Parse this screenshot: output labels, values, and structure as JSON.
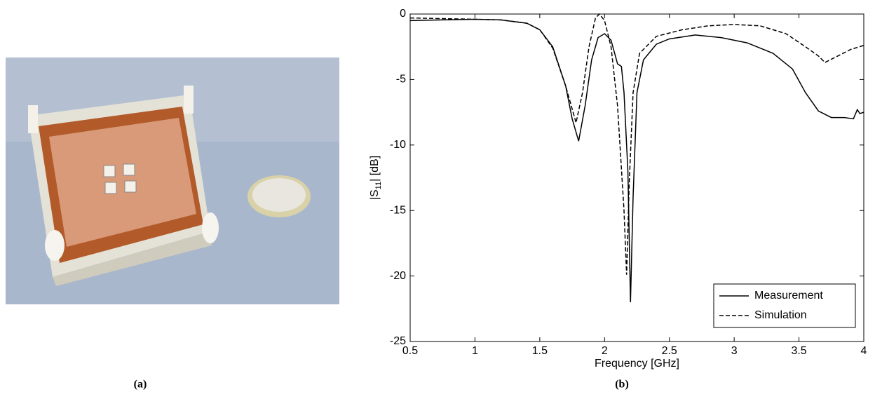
{
  "panel_a": {
    "caption": "(a)"
  },
  "chart_data": {
    "type": "line",
    "caption": "(b)",
    "xlabel": "Frequency [GHz]",
    "ylabel": [
      "|S",
      "11",
      "| [dB]"
    ],
    "xlim": [
      0.5,
      4
    ],
    "xticks": [
      0.5,
      1,
      1.5,
      2,
      2.5,
      3,
      3.5,
      4
    ],
    "ylim": [
      -25,
      0
    ],
    "yticks": [
      0,
      -5,
      -10,
      -15,
      -20,
      -25
    ],
    "grid": false,
    "legend": "lower right",
    "series": [
      {
        "name": "Measurement",
        "color": "#000000",
        "style": "solid",
        "x": [
          0.5,
          0.75,
          1.0,
          1.2,
          1.4,
          1.5,
          1.6,
          1.7,
          1.75,
          1.8,
          1.85,
          1.9,
          1.95,
          2.0,
          2.05,
          2.1,
          2.13,
          2.15,
          2.18,
          2.2,
          2.22,
          2.25,
          2.3,
          2.4,
          2.5,
          2.7,
          2.9,
          3.1,
          3.3,
          3.45,
          3.55,
          3.65,
          3.75,
          3.85,
          3.92,
          3.95,
          3.97,
          4.0
        ],
        "values": [
          -0.5,
          -0.45,
          -0.4,
          -0.45,
          -0.7,
          -1.2,
          -2.5,
          -5.5,
          -8,
          -9.7,
          -7,
          -3.5,
          -1.8,
          -1.5,
          -2.0,
          -3.8,
          -4.0,
          -6,
          -12,
          -22,
          -14,
          -6,
          -3.5,
          -2.3,
          -1.9,
          -1.6,
          -1.8,
          -2.2,
          -3.0,
          -4.2,
          -6.0,
          -7.4,
          -7.9,
          -7.9,
          -8.0,
          -7.3,
          -7.6,
          -7.5
        ]
      },
      {
        "name": "Simulation",
        "color": "#000000",
        "style": "dashed",
        "x": [
          0.5,
          0.75,
          1.0,
          1.2,
          1.4,
          1.5,
          1.6,
          1.7,
          1.78,
          1.83,
          1.88,
          1.93,
          1.96,
          2.0,
          2.05,
          2.1,
          2.15,
          2.17,
          2.19,
          2.22,
          2.27,
          2.4,
          2.6,
          2.8,
          3.0,
          3.2,
          3.4,
          3.55,
          3.65,
          3.7,
          3.8,
          3.9,
          4.0
        ],
        "values": [
          -0.3,
          -0.35,
          -0.4,
          -0.45,
          -0.7,
          -1.2,
          -2.6,
          -5.5,
          -8.3,
          -6,
          -2.5,
          -0.3,
          0,
          -0.5,
          -2.5,
          -7,
          -15,
          -19.9,
          -13,
          -6,
          -3,
          -1.7,
          -1.2,
          -0.9,
          -0.8,
          -0.9,
          -1.5,
          -2.5,
          -3.2,
          -3.7,
          -3.2,
          -2.7,
          -2.4
        ]
      }
    ]
  }
}
